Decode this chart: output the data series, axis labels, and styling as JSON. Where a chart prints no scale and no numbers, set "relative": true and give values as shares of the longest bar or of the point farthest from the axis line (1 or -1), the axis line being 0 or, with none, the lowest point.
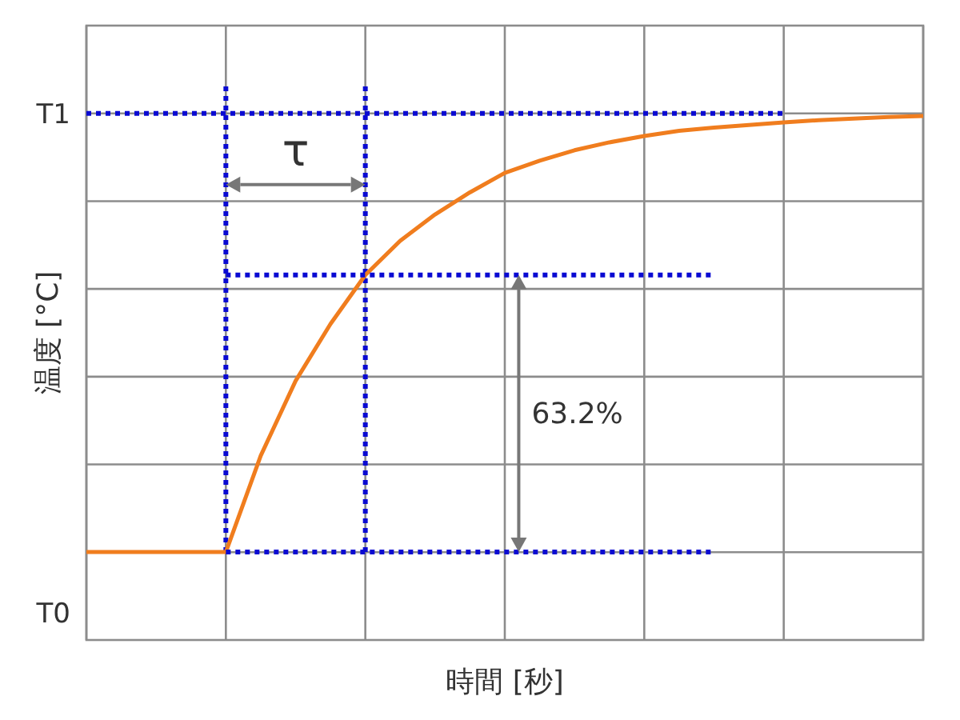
{
  "chart_data": {
    "type": "line",
    "xlabel": "時間 [秒]",
    "ylabel": "温度 [°C]",
    "relative": true,
    "categories": [
      null,
      null,
      null,
      null,
      null,
      null,
      null,
      null,
      null,
      null,
      null,
      null,
      null,
      null,
      null,
      null,
      null,
      null,
      null,
      null,
      null,
      null,
      null,
      null,
      null
    ],
    "grid": true,
    "annotations": [
      "τ",
      "63.2%",
      "T1",
      "T0"
    ],
    "series": [
      {
        "color": "#f07d1e",
        "line_style": "solid",
        "values": [
          0.167,
          0.167,
          0.167,
          0.167,
          0.167,
          0.35,
          0.492,
          0.6,
          0.693,
          0.758,
          0.808,
          0.85,
          0.887,
          0.91,
          0.93,
          0.945,
          0.957,
          0.967,
          0.973,
          0.978,
          0.983,
          0.987,
          0.99,
          0.993,
          0.995
        ]
      },
      {
        "color": "#0a0ad2",
        "line_style": "dotted",
        "values": [
          1,
          1,
          1,
          1,
          1,
          1,
          1,
          1,
          1,
          1,
          1,
          1,
          1,
          1,
          1,
          1,
          1,
          1,
          1,
          1,
          1,
          null,
          null,
          null,
          null
        ]
      },
      {
        "color": "#0a0ad2",
        "line_style": "dotted",
        "values": [
          null,
          null,
          null,
          null,
          0.693,
          0.693,
          0.693,
          0.693,
          0.693,
          0.693,
          0.693,
          0.693,
          0.693,
          0.693,
          0.693,
          0.693,
          0.693,
          0.693,
          0.693,
          null,
          null,
          null,
          null,
          null,
          null
        ]
      },
      {
        "color": "#0a0ad2",
        "line_style": "dotted",
        "values": [
          null,
          null,
          null,
          null,
          0.167,
          0.167,
          0.167,
          0.167,
          0.167,
          0.167,
          0.167,
          0.167,
          0.167,
          0.167,
          0.167,
          0.167,
          0.167,
          0.167,
          0.167,
          null,
          null,
          null,
          null,
          null,
          null
        ]
      }
    ]
  }
}
